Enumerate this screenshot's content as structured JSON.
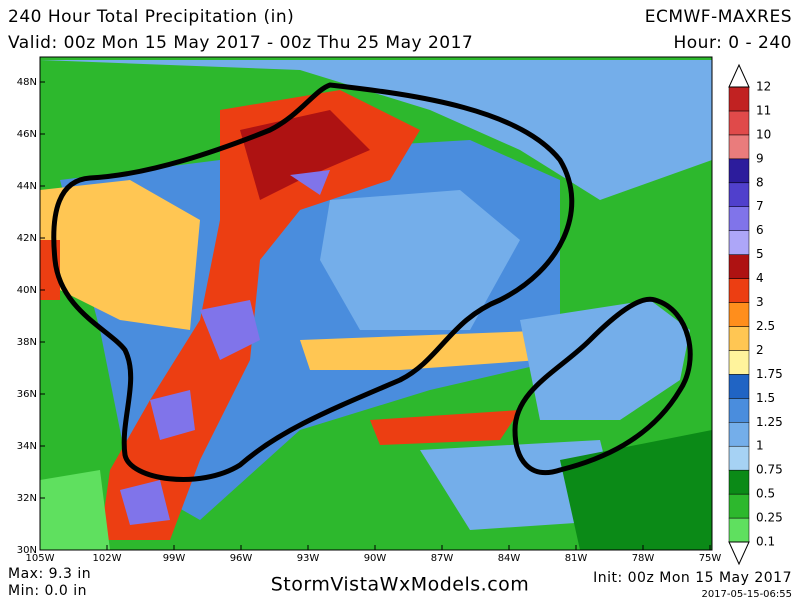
{
  "header": {
    "title": "240 Hour Total Precipitation (in)",
    "valid": "Valid: 00z Mon 15 May 2017 - 00z Thu 25 May 2017",
    "model": "ECMWF-MAXRES",
    "hour": "Hour: 0 - 240"
  },
  "map": {
    "lat_labels": [
      "48N",
      "46N",
      "44N",
      "42N",
      "40N",
      "38N",
      "36N",
      "34N",
      "32N",
      "30N"
    ],
    "lon_labels": [
      "105W",
      "102W",
      "99W",
      "96W",
      "93W",
      "90W",
      "87W",
      "84W",
      "81W",
      "78W",
      "75W"
    ]
  },
  "colorbar": {
    "levels": [
      0.1,
      0.25,
      0.5,
      0.75,
      1,
      1.25,
      1.5,
      1.75,
      2,
      2.5,
      3,
      4,
      5,
      6,
      7,
      8,
      9,
      10,
      11,
      12
    ],
    "colors": [
      "#5fe05f",
      "#2db82d",
      "#0b8a17",
      "#a6d2f4",
      "#74aeea",
      "#4a8ddd",
      "#2064c4",
      "#fff39c",
      "#ffc653",
      "#ff8e1c",
      "#ec3e12",
      "#ae1212",
      "#ada6f8",
      "#8074ea",
      "#5040cc",
      "#2c1c9c",
      "#ea7c7c",
      "#e04a4a",
      "#c12222"
    ]
  },
  "footer": {
    "max": "Max: 9.3 in",
    "min": "Min: 0.0 in",
    "site": "StormVistaWxModels.com",
    "init": "Init: 00z Mon 15 May 2017",
    "stamp": "2017-05-15-06:55"
  }
}
